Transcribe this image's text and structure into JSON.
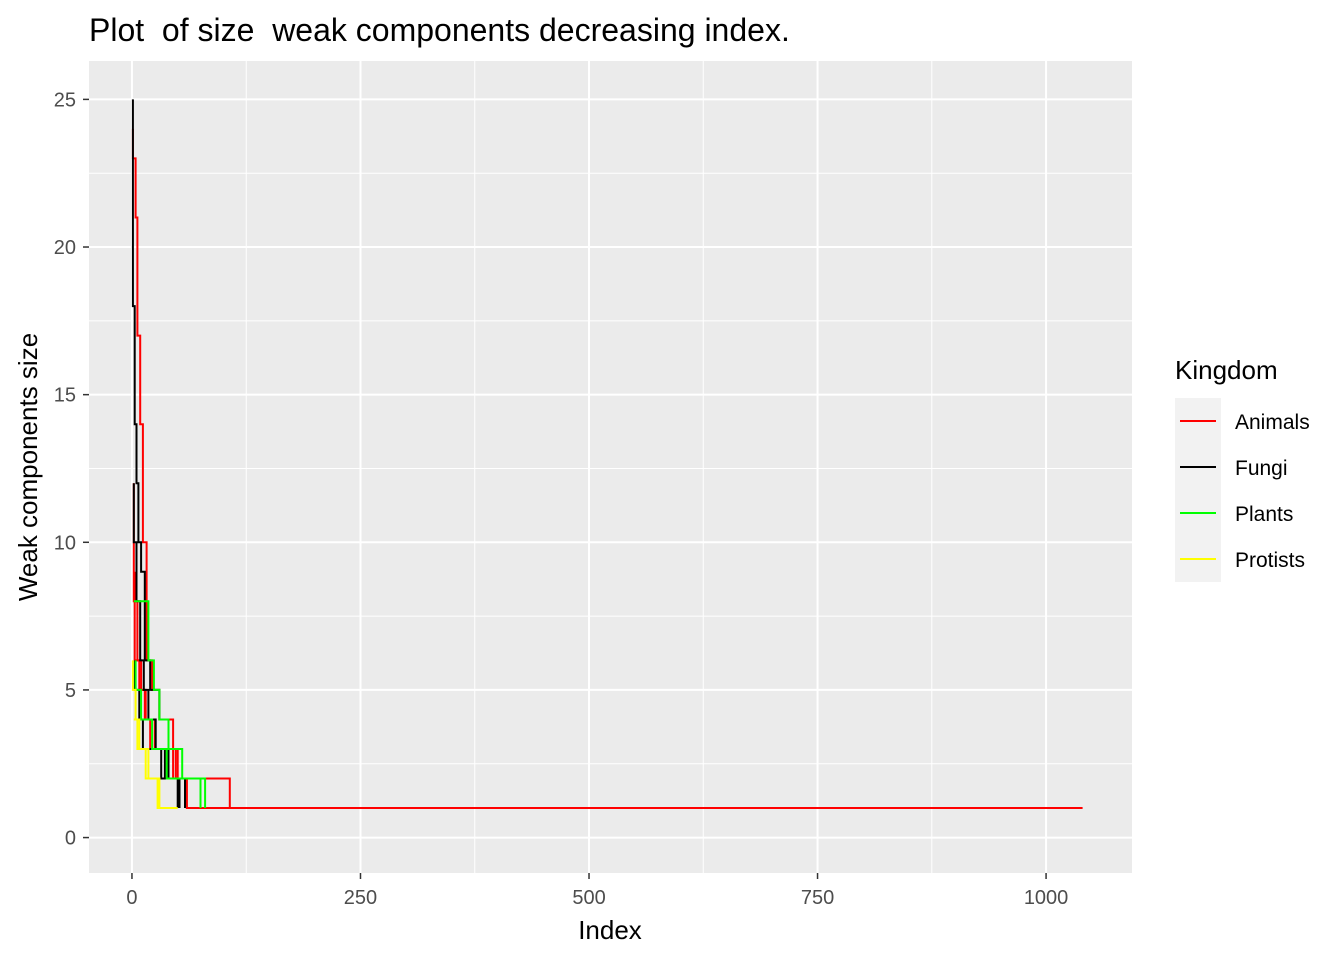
{
  "chart_data": {
    "type": "line",
    "title": "Plot  of size  weak components decreasing index.",
    "xlabel": "Index",
    "ylabel": "Weak components size",
    "xlim": [
      -47,
      1094
    ],
    "ylim": [
      -1.2,
      26.3
    ],
    "x_ticks": [
      0,
      250,
      500,
      750,
      1000
    ],
    "x_tick_labels": [
      "0",
      "250",
      "500",
      "750",
      "1000"
    ],
    "y_ticks": [
      0,
      5,
      10,
      15,
      20,
      25
    ],
    "y_tick_labels": [
      "0",
      "5",
      "10",
      "15",
      "20",
      "25"
    ],
    "grid": true,
    "legend_position": "right",
    "legend_title": "Kingdom",
    "series": [
      {
        "name": "Animals",
        "color": "#ff0000",
        "lines": [
          {
            "x": [
              1,
              1,
              4,
              4,
              6,
              6,
              9,
              9,
              12,
              12,
              16,
              16,
              22,
              22,
              30,
              30,
              45,
              45,
              60,
              60,
              1040
            ],
            "y": [
              24,
              23,
              23,
              21,
              21,
              17,
              17,
              14,
              14,
              10,
              10,
              6,
              6,
              5,
              5,
              4,
              4,
              2,
              2,
              1,
              1
            ]
          },
          {
            "x": [
              2,
              2,
              6,
              6,
              10,
              10,
              14,
              14,
              20,
              20,
              28,
              28,
              40,
              40,
              55,
              55,
              75,
              75,
              90,
              90
            ],
            "y": [
              12,
              8,
              8,
              6,
              6,
              5,
              5,
              4,
              4,
              3,
              3,
              3,
              3,
              2,
              2,
              2,
              2,
              1,
              1,
              1
            ]
          },
          {
            "x": [
              3,
              3,
              8,
              8,
              15,
              15,
              25,
              25,
              35,
              35,
              50,
              50,
              70,
              70,
              85,
              85,
              100,
              100,
              107,
              107
            ],
            "y": [
              9,
              6,
              6,
              5,
              5,
              4,
              4,
              3,
              3,
              3,
              3,
              2,
              2,
              2,
              2,
              2,
              2,
              2,
              2,
              1
            ]
          },
          {
            "x": [
              20,
              20,
              32,
              32,
              48,
              48,
              60,
              60
            ],
            "y": [
              3,
              3,
              3,
              3,
              3,
              2,
              2,
              1
            ]
          }
        ]
      },
      {
        "name": "Fungi",
        "color": "#000000",
        "lines": [
          {
            "x": [
              1,
              1,
              3,
              3,
              5,
              5,
              7,
              7,
              10,
              10,
              14,
              14,
              20,
              20,
              30,
              30,
              40,
              40,
              50,
              50
            ],
            "y": [
              25,
              18,
              18,
              14,
              14,
              12,
              12,
              10,
              10,
              9,
              9,
              6,
              6,
              5,
              5,
              4,
              4,
              2,
              2,
              1
            ]
          },
          {
            "x": [
              2,
              2,
              5,
              5,
              9,
              9,
              13,
              13,
              18,
              18,
              26,
              26,
              36,
              36,
              48,
              48,
              58,
              58
            ],
            "y": [
              12,
              10,
              10,
              8,
              8,
              6,
              6,
              5,
              5,
              4,
              4,
              3,
              3,
              2,
              2,
              2,
              2,
              1
            ]
          },
          {
            "x": [
              3,
              3,
              8,
              8,
              12,
              12,
              20,
              20,
              32,
              32,
              45,
              45,
              52,
              52
            ],
            "y": [
              6,
              5,
              5,
              4,
              4,
              3,
              3,
              3,
              3,
              2,
              2,
              2,
              2,
              1
            ]
          }
        ]
      },
      {
        "name": "Plants",
        "color": "#00ff00",
        "lines": [
          {
            "x": [
              2,
              2,
              6,
              6,
              12,
              12,
              18,
              18,
              24,
              24,
              30,
              30,
              40,
              40,
              55,
              55,
              70,
              70,
              80,
              80
            ],
            "y": [
              8,
              8,
              8,
              8,
              8,
              8,
              8,
              6,
              6,
              5,
              5,
              4,
              4,
              3,
              3,
              2,
              2,
              2,
              2,
              1
            ]
          },
          {
            "x": [
              4,
              4,
              10,
              10,
              16,
              16,
              22,
              22,
              30,
              30,
              38,
              38,
              50,
              50,
              62,
              62,
              75,
              75
            ],
            "y": [
              6,
              5,
              5,
              4,
              4,
              4,
              4,
              3,
              3,
              3,
              3,
              2,
              2,
              2,
              2,
              2,
              2,
              1
            ]
          }
        ]
      },
      {
        "name": "Protists",
        "color": "#ffff00",
        "lines": [
          {
            "x": [
              1,
              1,
              4,
              4,
              8,
              8,
              12,
              12,
              18,
              18,
              24,
              24,
              30,
              30,
              40,
              40,
              50,
              50
            ],
            "y": [
              6,
              5,
              5,
              4,
              4,
              3,
              3,
              3,
              3,
              2,
              2,
              2,
              2,
              1,
              1,
              1,
              1,
              1
            ]
          },
          {
            "x": [
              2,
              2,
              6,
              6,
              10,
              10,
              15,
              15,
              22,
              22,
              28,
              28,
              35,
              35
            ],
            "y": [
              4,
              4,
              4,
              3,
              3,
              3,
              3,
              2,
              2,
              2,
              2,
              1,
              1,
              1
            ]
          }
        ]
      }
    ]
  }
}
